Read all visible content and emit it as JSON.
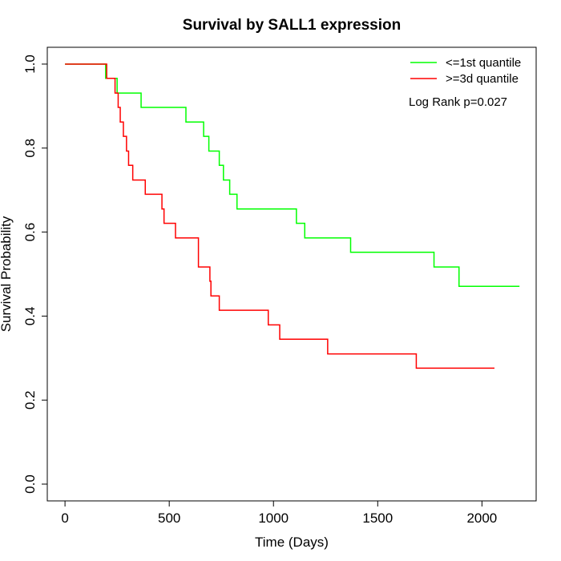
{
  "chart_data": {
    "type": "line",
    "title": "Survival by SALL1 expression",
    "xlabel": "Time (Days)",
    "ylabel": "Survival Probability",
    "xlim": [
      -85,
      2260
    ],
    "ylim": [
      -0.04,
      1.04
    ],
    "xticks": [
      0,
      500,
      1000,
      1500,
      2000
    ],
    "yticks": [
      0.0,
      0.2,
      0.4,
      0.6,
      0.8,
      1.0
    ],
    "xtick_labels": [
      "0",
      "500",
      "1000",
      "1500",
      "2000"
    ],
    "ytick_labels": [
      "0.0",
      "0.2",
      "0.4",
      "0.6",
      "0.8",
      "1.0"
    ],
    "grid": false,
    "legend_position": "top-right",
    "annotation": "Log Rank p=0.027",
    "series": [
      {
        "name": "<=1st quantile",
        "color": "#00ff00",
        "step_x": [
          0,
          195,
          250,
          365,
          580,
          665,
          690,
          740,
          760,
          790,
          825,
          1110,
          1150,
          1370,
          1770,
          1890,
          2180
        ],
        "step_y": [
          1.0,
          0.966,
          0.931,
          0.897,
          0.862,
          0.828,
          0.793,
          0.759,
          0.724,
          0.69,
          0.655,
          0.621,
          0.586,
          0.552,
          0.517,
          0.471,
          0.471
        ]
      },
      {
        "name": ">=3d quantile",
        "color": "#ff0000",
        "step_x": [
          0,
          200,
          240,
          255,
          265,
          280,
          295,
          305,
          325,
          385,
          465,
          475,
          490,
          530,
          640,
          695,
          700,
          740,
          975,
          1030,
          1260,
          1685,
          2060
        ],
        "step_y": [
          1.0,
          0.966,
          0.931,
          0.897,
          0.862,
          0.828,
          0.793,
          0.759,
          0.724,
          0.69,
          0.655,
          0.621,
          0.621,
          0.586,
          0.517,
          0.483,
          0.448,
          0.414,
          0.379,
          0.345,
          0.31,
          0.276,
          0.276
        ]
      }
    ]
  }
}
